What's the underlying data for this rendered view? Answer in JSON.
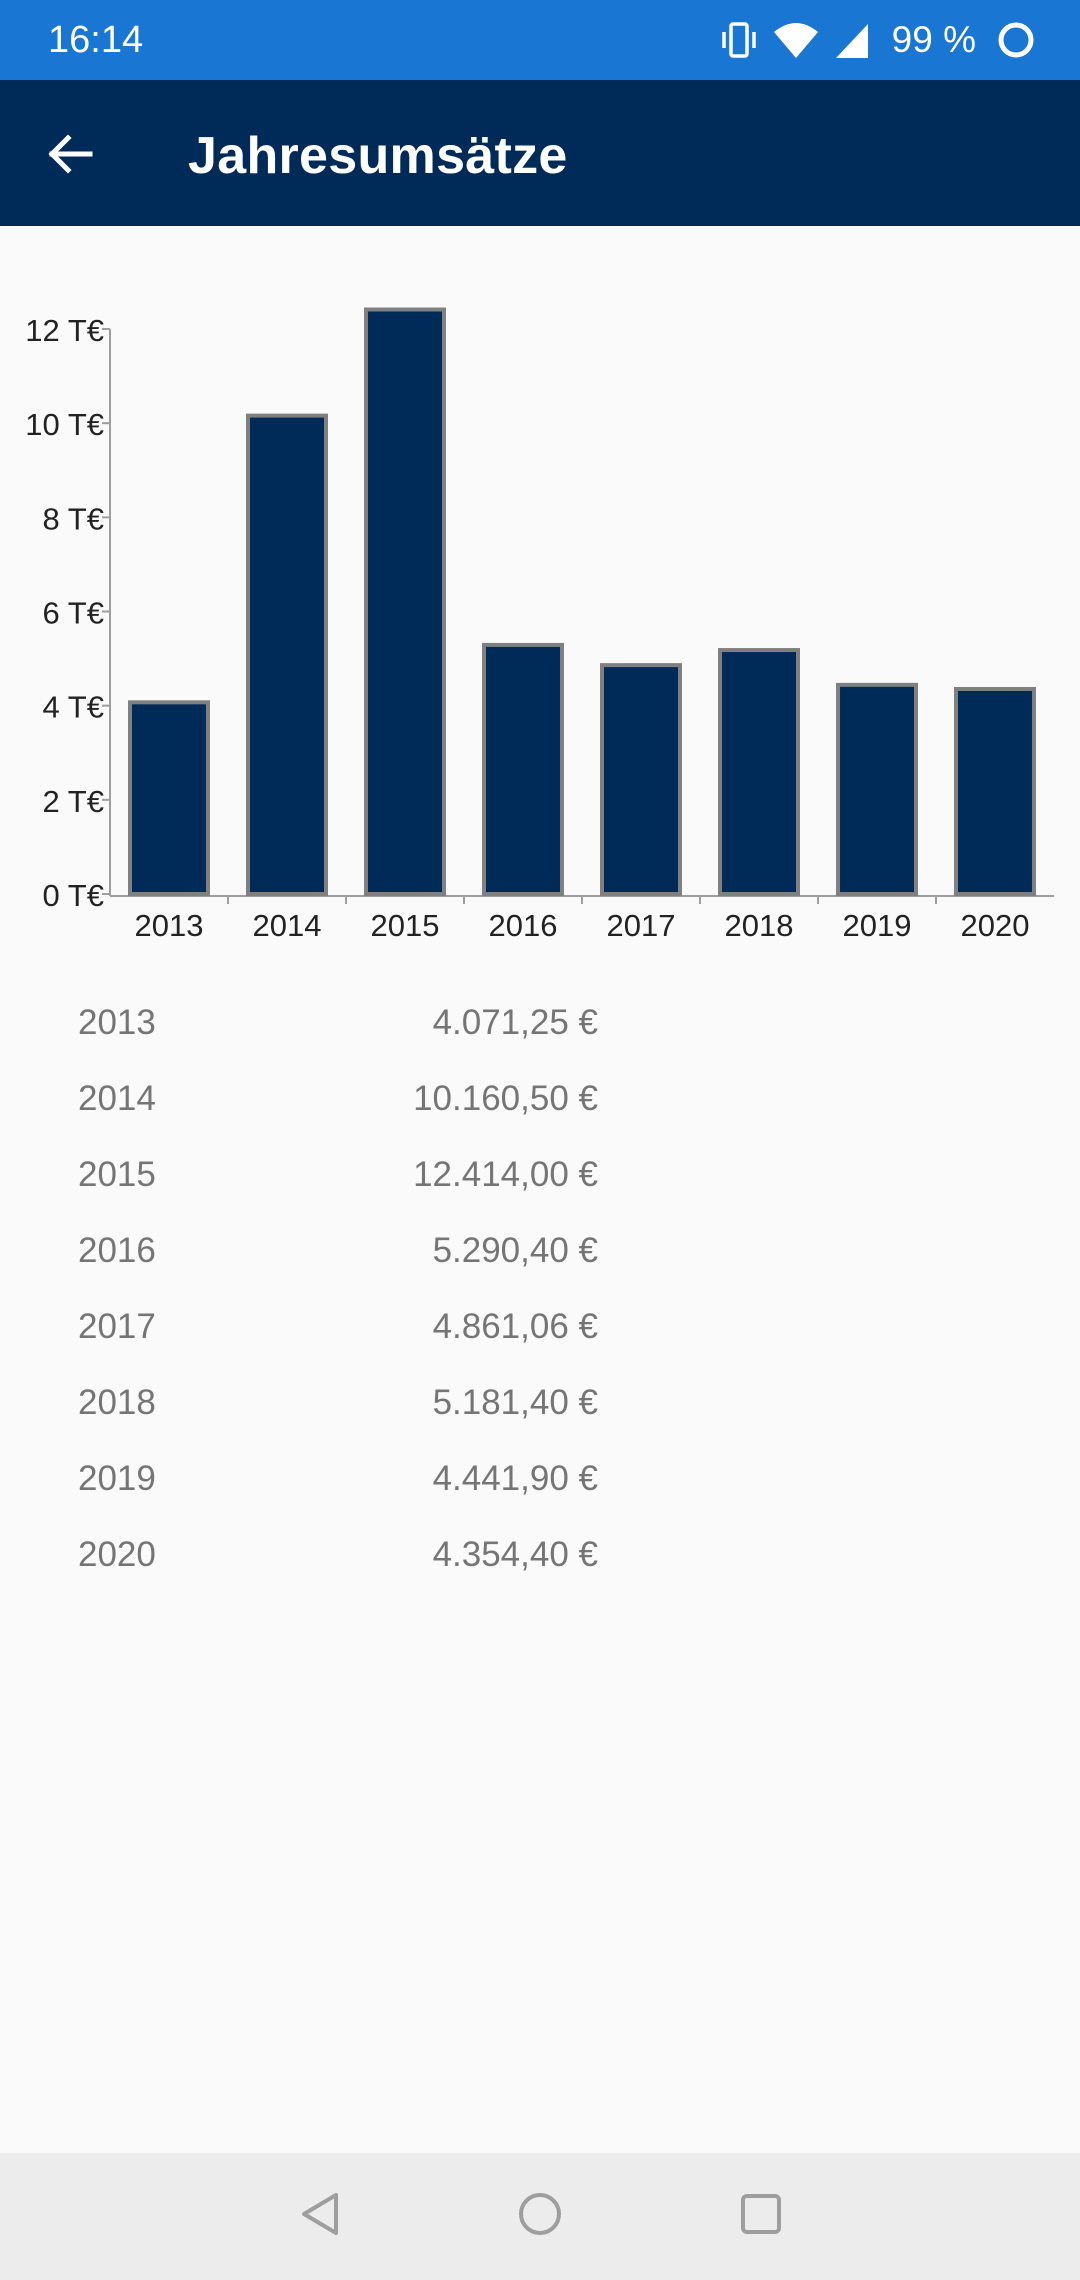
{
  "status_bar": {
    "time": "16:14",
    "battery_text": "99 %",
    "icons": [
      "vibrate-icon",
      "wifi-icon",
      "cell-signal-icon",
      "battery-ring-icon"
    ]
  },
  "app_bar": {
    "title": "Jahresumsätze",
    "back_icon": "arrow-back-icon"
  },
  "colors": {
    "status_bar": "#1976d2",
    "app_bar": "#002b58",
    "bar_fill": "#002b58",
    "bar_stroke": "#808080",
    "table_text": "#757575"
  },
  "chart_data": {
    "type": "bar",
    "categories": [
      "2013",
      "2014",
      "2015",
      "2016",
      "2017",
      "2018",
      "2019",
      "2020"
    ],
    "values": [
      4071.25,
      10160.5,
      12414.0,
      5290.4,
      4861.06,
      5181.4,
      4441.9,
      4354.4
    ],
    "ylim": [
      0,
      12000
    ],
    "yticks": [
      0,
      2000,
      4000,
      6000,
      8000,
      10000,
      12000
    ],
    "ytick_labels": [
      "0 T€",
      "2 T€",
      "4 T€",
      "6 T€",
      "8 T€",
      "10 T€",
      "12 T€"
    ],
    "grid": false
  },
  "sales_table": [
    {
      "year": "2013",
      "amount": "4.071,25 €"
    },
    {
      "year": "2014",
      "amount": "10.160,50 €"
    },
    {
      "year": "2015",
      "amount": "12.414,00 €"
    },
    {
      "year": "2016",
      "amount": "5.290,40 €"
    },
    {
      "year": "2017",
      "amount": "4.861,06 €"
    },
    {
      "year": "2018",
      "amount": "5.181,40 €"
    },
    {
      "year": "2019",
      "amount": "4.441,90 €"
    },
    {
      "year": "2020",
      "amount": "4.354,40 €"
    }
  ],
  "nav_bar": {
    "icons": [
      "nav-back-icon",
      "nav-home-icon",
      "nav-recents-icon"
    ]
  }
}
